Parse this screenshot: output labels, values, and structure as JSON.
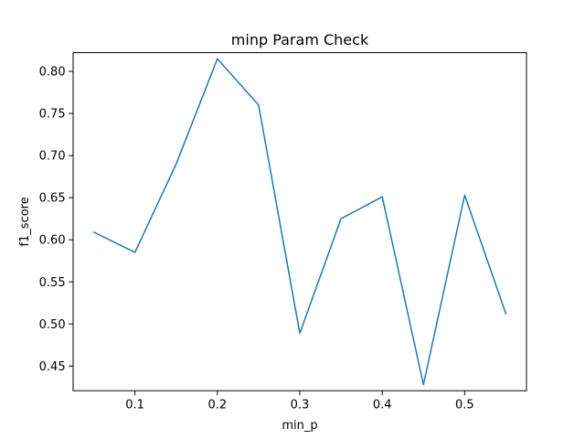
{
  "chart_data": {
    "type": "line",
    "title": "minp Param Check",
    "xlabel": "min_p",
    "ylabel": "f1_score",
    "x": [
      0.05,
      0.1,
      0.15,
      0.2,
      0.25,
      0.3,
      0.35,
      0.4,
      0.45,
      0.5,
      0.55
    ],
    "series": [
      {
        "values": [
          0.609,
          0.585,
          0.69,
          0.815,
          0.76,
          0.489,
          0.625,
          0.651,
          0.428,
          0.653,
          0.512
        ],
        "color": "#1f77b4"
      }
    ],
    "xlim": [
      0.025,
      0.575
    ],
    "ylim": [
      0.4207,
      0.8222
    ],
    "x_ticks": [
      0.1,
      0.2,
      0.3,
      0.4,
      0.5
    ],
    "x_tick_labels": [
      "0.1",
      "0.2",
      "0.3",
      "0.4",
      "0.5"
    ],
    "y_ticks": [
      0.45,
      0.5,
      0.55,
      0.6,
      0.65,
      0.7,
      0.75,
      0.8
    ],
    "y_tick_labels": [
      "0.45",
      "0.50",
      "0.55",
      "0.60",
      "0.65",
      "0.70",
      "0.75",
      "0.80"
    ],
    "grid": false
  }
}
